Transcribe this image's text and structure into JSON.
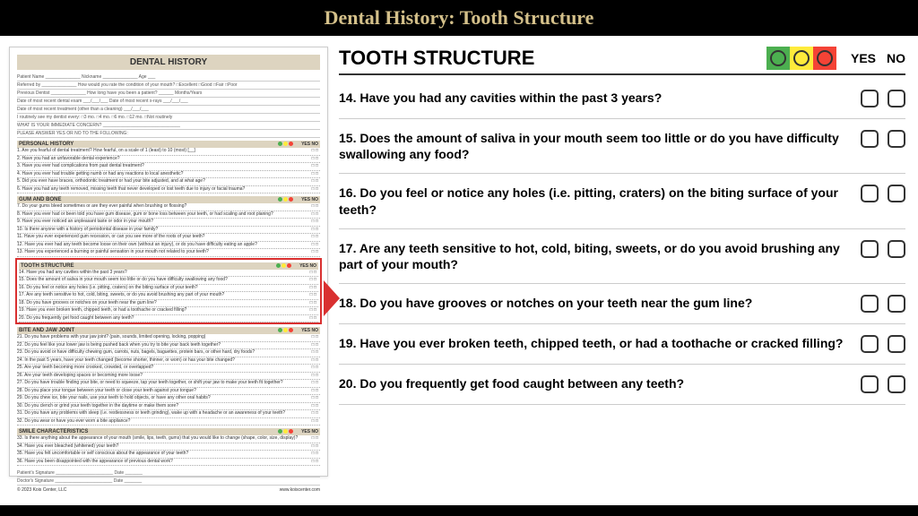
{
  "header": {
    "title": "Dental History: Tooth Structure"
  },
  "preview": {
    "title": "DENTAL HISTORY",
    "top_lines": [
      "Patient Name ______________ Nickname ______________ Age ___",
      "Referred by ______________ How would you rate the condition of your mouth? □Excellent □Good □Fair □Poor",
      "Previous Dentist ______________ How long have you been a patient? ______ Months/Years",
      "Date of most recent dental exam ___/___/___ Date of most recent x-rays ___/___/___",
      "Date of most recent treatment (other than a cleaning) ___/___/___",
      "I routinely see my dentist every: □3 mo. □4 mo. □6 mo. □12 mo. □Not routinely",
      "WHAT IS YOUR IMMEDIATE CONCERN? _______________________________",
      "PLEASE ANSWER YES OR NO TO THE FOLLOWING:"
    ],
    "sections": [
      {
        "name": "PERSONAL HISTORY",
        "qs": [
          "1. Are you fearful of dental treatment? How fearful, on a scale of 1 (least) to 10 (most) [__]",
          "2. Have you had an unfavorable dental experience?",
          "3. Have you ever had complications from past dental treatment?",
          "4. Have you ever had trouble getting numb or had any reactions to local anesthetic?",
          "5. Did you ever have braces, orthodontic treatment or had your bite adjusted, and at what age?",
          "6. Have you had any teeth removed, missing teeth that never developed or lost teeth due to injury or facial trauma?"
        ]
      },
      {
        "name": "GUM AND BONE",
        "qs": [
          "7. Do your gums bleed sometimes or are they ever painful when brushing or flossing?",
          "8. Have you ever had or been told you have gum disease, gum or bone loss between your teeth, or had scaling and root planing?",
          "9. Have you ever noticed an unpleasant taste or odor in your mouth?",
          "10. Is there anyone with a history of periodontal disease in your family?",
          "11. Have you ever experienced gum recession, or can you see more of the roots of your teeth?",
          "12. Have you ever had any teeth become loose on their own (without an injury), or do you have difficulty eating an apple?",
          "13. Have you experienced a burning or painful sensation in your mouth not related to your teeth?"
        ]
      },
      {
        "name": "TOOTH STRUCTURE",
        "highlight": true,
        "qs": [
          "14. Have you had any cavities within the past 3 years?",
          "15. Does the amount of saliva in your mouth seem too little or do you have difficulty swallowing any food?",
          "16. Do you feel or notice any holes (i.e. pitting, craters) on the biting surface of your teeth?",
          "17. Are any teeth sensitive to hot, cold, biting, sweets, or do you avoid brushing any part of your mouth?",
          "18. Do you have grooves or notches on your teeth near the gum line?",
          "19. Have you ever broken teeth, chipped teeth, or had a toothache or cracked filling?",
          "20. Do you frequently get food caught between any teeth?"
        ]
      },
      {
        "name": "BITE AND JAW JOINT",
        "qs": [
          "21. Do you have problems with your jaw joint? (pain, sounds, limited opening, locking, popping)",
          "22. Do you feel like your lower jaw is being pushed back when you try to bite your back teeth together?",
          "23. Do you avoid or have difficulty chewing gum, carrots, nuts, bagels, baguettes, protein bars, or other hard, dry foods?",
          "24. In the past 5 years, have your teeth changed (become shorter, thinner, or worn) or has your bite changed?",
          "25. Are your teeth becoming more crooked, crowded, or overlapped?",
          "26. Are your teeth developing spaces or becoming more loose?",
          "27. Do you have trouble finding your bite, or need to squeeze, tap your teeth together, or shift your jaw to make your teeth fit together?",
          "28. Do you place your tongue between your teeth or close your teeth against your tongue?",
          "29. Do you chew ice, bite your nails, use your teeth to hold objects, or have any other oral habits?",
          "30. Do you clench or grind your teeth together in the daytime or make them sore?",
          "31. Do you have any problems with sleep (i.e. restlessness or teeth grinding), wake up with a headache or an awareness of your teeth?",
          "32. Do you wear or have you ever worn a bite appliance?"
        ]
      },
      {
        "name": "SMILE CHARACTERISTICS",
        "qs": [
          "33. Is there anything about the appearance of your mouth (smile, lips, teeth, gums) that you would like to change (shape, color, size, display)?",
          "34. Have you ever bleached (whitened) your teeth?",
          "35. Have you felt uncomfortable or self conscious about the appearance of your teeth?",
          "36. Have you been disappointed with the appearance of previous dental work?"
        ]
      }
    ],
    "footer_lines": [
      "Patient's Signature _______________________ Date _______",
      "Doctor's Signature _______________________ Date _______"
    ],
    "copyright": "© 2023 Kois Center, LLC",
    "url": "www.koiscenter.com"
  },
  "main": {
    "section_title": "TOOTH STRUCTURE",
    "dot_colors": {
      "green_bg": "#4caf50",
      "yellow_bg": "#ffeb3b",
      "red_bg": "#f44336"
    },
    "yes_label": "YES",
    "no_label": "NO",
    "questions": [
      {
        "num": "14",
        "text": "14. Have you had any cavities within the past 3 years?"
      },
      {
        "num": "15",
        "text": "15. Does the amount of saliva in your mouth seem too little or do you have difficulty swallowing any food?"
      },
      {
        "num": "16",
        "text": "16. Do you feel or notice any holes (i.e. pitting, craters) on the biting surface of your teeth?"
      },
      {
        "num": "17",
        "text": "17. Are any teeth sensitive to hot, cold, biting, sweets, or do you avoid brushing any part of your mouth?"
      },
      {
        "num": "18",
        "text": "18. Do you have grooves or notches on your teeth near the gum line?"
      },
      {
        "num": "19",
        "text": "19. Have you ever broken teeth, chipped teeth, or had a toothache or cracked filling?"
      },
      {
        "num": "20",
        "text": "20. Do you frequently get food caught between any teeth?"
      }
    ]
  }
}
